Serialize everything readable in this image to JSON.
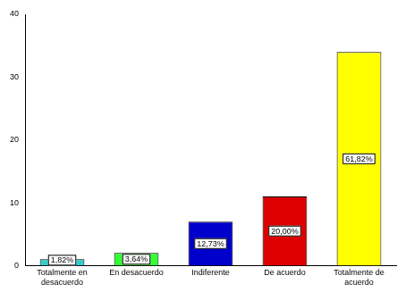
{
  "chart_data": {
    "type": "bar",
    "categories": [
      "Totalmente en desacuerdo",
      "En desacuerdo",
      "Indiferente",
      "De acuerdo",
      "Totalmente de acuerdo"
    ],
    "values": [
      1,
      2,
      7,
      11,
      34
    ],
    "percent_labels": [
      "1,82%",
      "3,64%",
      "12,73%",
      "20,00%",
      "61,82%"
    ],
    "colors": [
      "#33cccc",
      "#33ff33",
      "#0000cc",
      "#dd0000",
      "#ffff00"
    ],
    "ylim": [
      0,
      40
    ],
    "yticks": [
      0,
      10,
      20,
      30,
      40
    ],
    "grid": false,
    "data_labels": true
  }
}
